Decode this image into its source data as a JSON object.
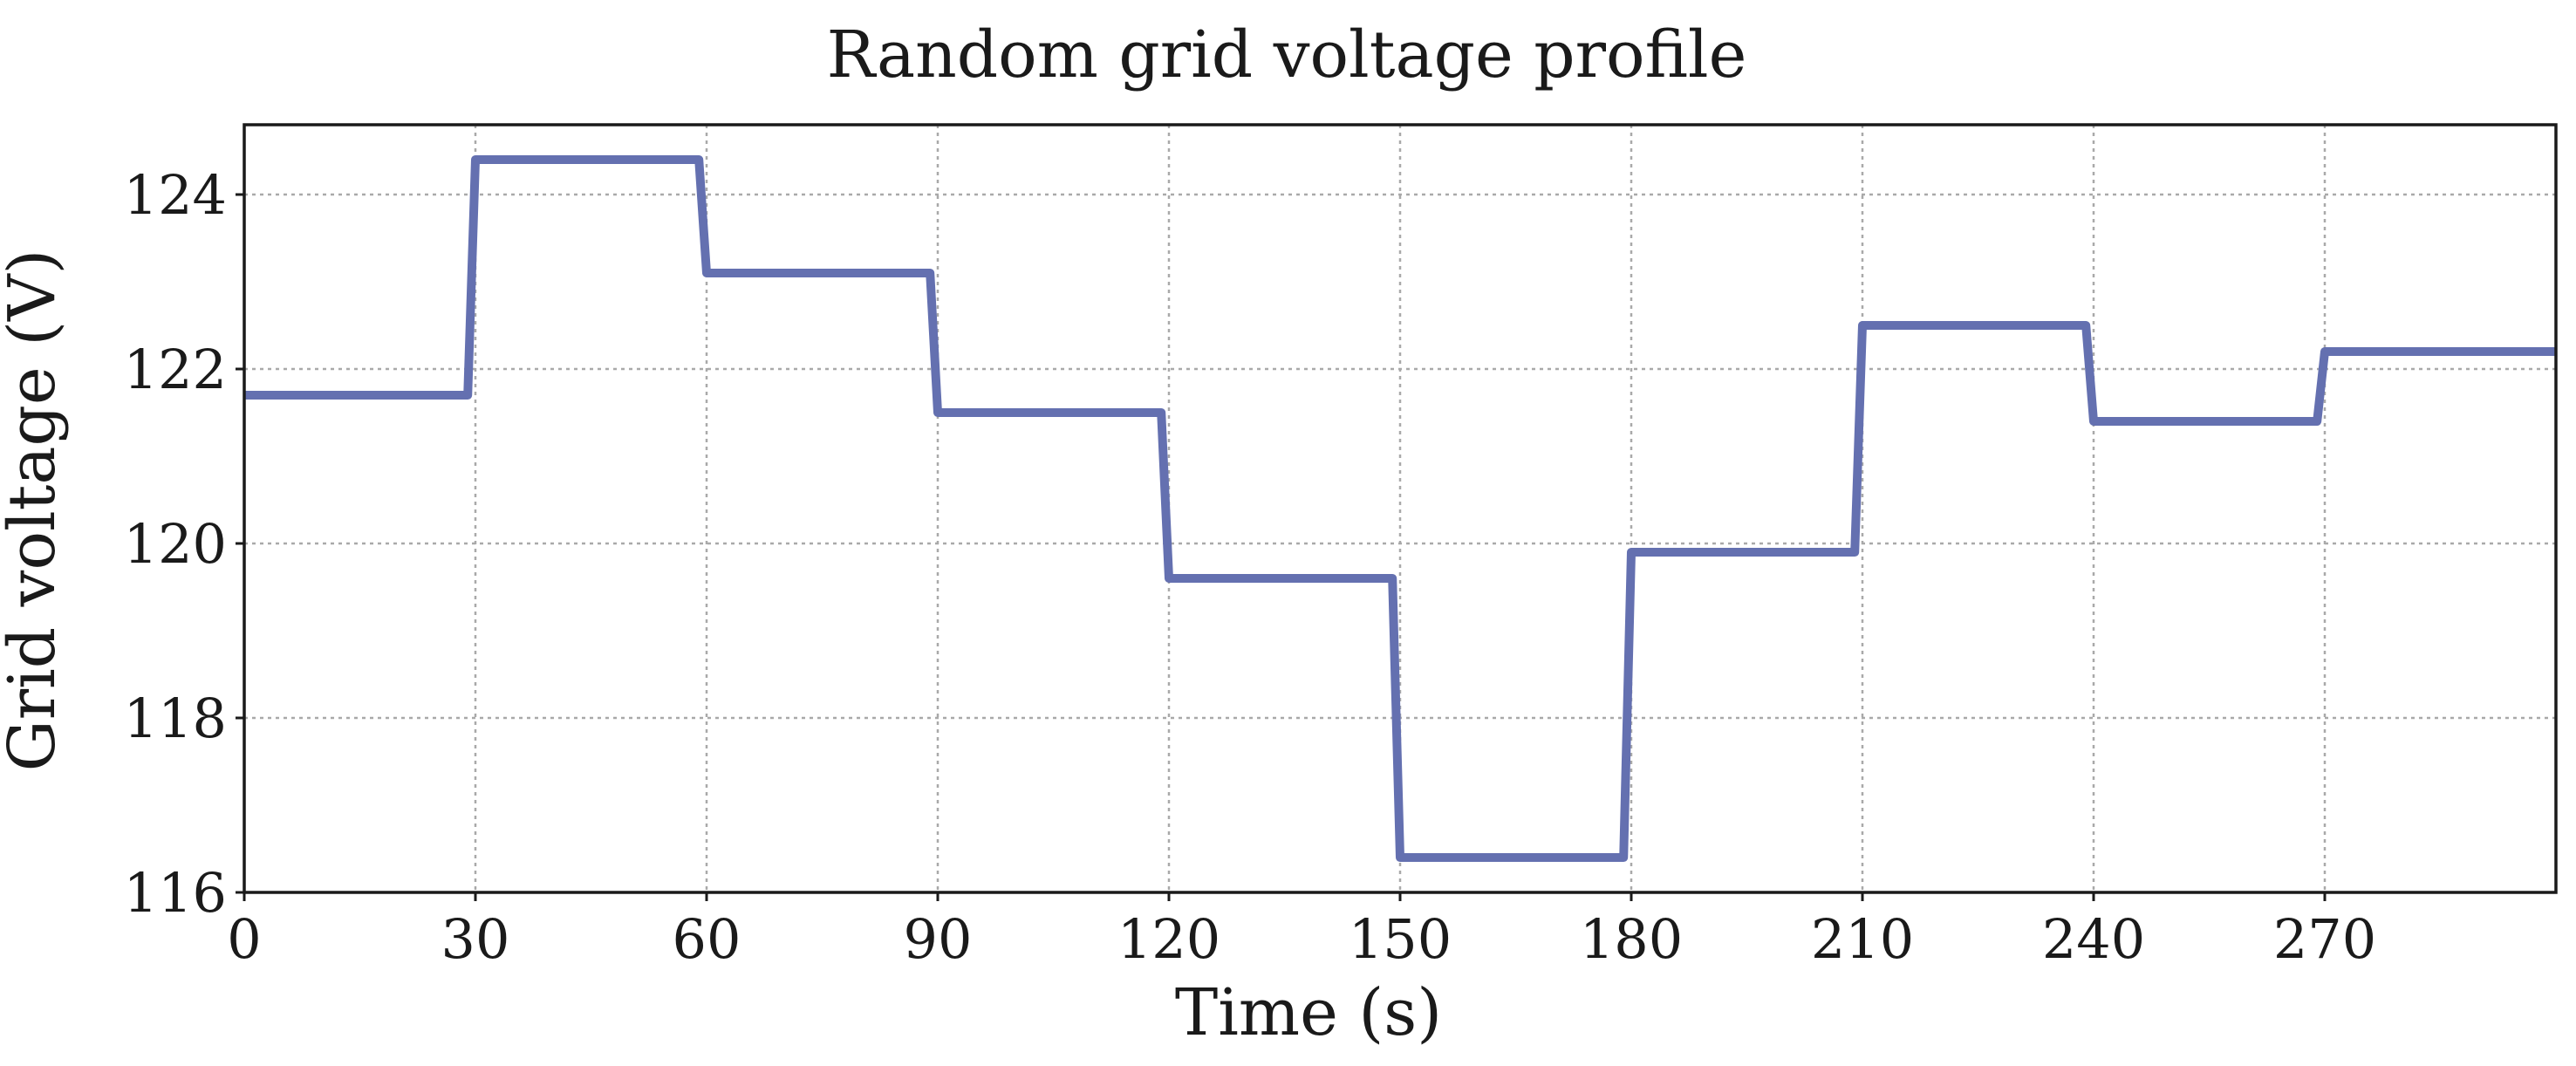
{
  "chart_data": {
    "type": "line",
    "title": "Random grid voltage profile",
    "xlabel": "Time (s)",
    "ylabel": "Grid voltage (V)",
    "xlim": [
      0,
      300
    ],
    "ylim": [
      116,
      124.8
    ],
    "x_ticks": [
      0,
      30,
      60,
      90,
      120,
      150,
      180,
      210,
      240,
      270
    ],
    "x_tick_labels": [
      "0",
      "30",
      "60",
      "90",
      "120",
      "150",
      "180",
      "210",
      "240",
      "270"
    ],
    "y_ticks": [
      116,
      118,
      120,
      122,
      124
    ],
    "y_tick_labels": [
      "116",
      "118",
      "120",
      "122",
      "124"
    ],
    "grid": true,
    "legend": false,
    "series": [
      {
        "color": "#6470b0",
        "x": [
          0,
          29,
          30,
          59,
          60,
          89,
          90,
          119,
          120,
          149,
          150,
          179,
          180,
          209,
          210,
          239,
          240,
          269,
          270,
          300
        ],
        "y": [
          121.7,
          121.7,
          124.4,
          124.4,
          123.1,
          123.1,
          121.5,
          121.5,
          119.6,
          119.6,
          116.4,
          116.4,
          119.9,
          119.9,
          122.5,
          122.5,
          121.4,
          121.4,
          122.2,
          122.2
        ]
      }
    ]
  }
}
